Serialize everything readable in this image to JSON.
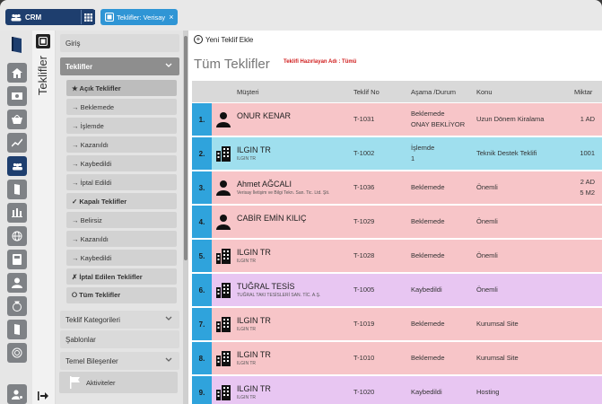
{
  "app": {
    "name": "CRM"
  },
  "tabs": {
    "active_label": "Teklifler: Verisay",
    "close": "×"
  },
  "side_title": "Teklifler",
  "menu": {
    "giris": "Giriş",
    "teklifler": "Teklifler",
    "acik": "★ Açık Teklifler",
    "acik_items": [
      "→ Beklemede",
      "→ İşlemde",
      "→ Kazanıldı",
      "→ Kaybedildi",
      "→ İptal Edildi"
    ],
    "kapali": "✓ Kapalı Teklifler",
    "kapali_items": [
      "→ Belirsiz",
      "→ Kazanıldı",
      "→ Kaybedildi"
    ],
    "iptal": "✗ İptal Edilen Teklifler",
    "tum": "⭘ Tüm Teklifler",
    "kategoriler": "Teklif Kategorileri",
    "sablonlar": "Şablonlar",
    "bilesenler": "Temel Bileşenler",
    "aktiviteler": "Aktiviteler"
  },
  "toolbar": {
    "new_label": "Yeni Teklif Ekle"
  },
  "page": {
    "title": "Tüm Teklifler",
    "filter": "Teklifi Hazırlayan Adı : Tümü"
  },
  "table": {
    "headers": {
      "customer": "Müşteri",
      "no": "Teklif No",
      "stage": "Aşama /Durum",
      "subject": "Konu",
      "amount": "Miktar"
    },
    "rows": [
      {
        "n": "1.",
        "icon": "person",
        "name": "ONUR KENAR",
        "sub": "",
        "no": "T-1031",
        "stage": "Beklemede",
        "stage2": "ONAY BEKLİYOR",
        "subject": "Uzun Dönem Kiralama",
        "amount": "1 AD",
        "amount2": "",
        "color": "pink"
      },
      {
        "n": "2.",
        "icon": "building",
        "name": "ILGIN TR",
        "sub": "ILGIN TR",
        "no": "T-1002",
        "stage": "İşlemde",
        "stage2": "1",
        "subject": "Teknik Destek Teklifi",
        "amount": "1001",
        "amount2": "",
        "color": "cyan"
      },
      {
        "n": "3.",
        "icon": "person",
        "name": "Ahmet AĞCALI",
        "sub": "Verisay İletişim ve Bilgi Tekn. San. Tic. Ltd. Şti.",
        "no": "T-1036",
        "stage": "Beklemede",
        "stage2": "",
        "subject": "Önemli",
        "amount": "2 AD",
        "amount2": "5 M2",
        "color": "pink"
      },
      {
        "n": "4.",
        "icon": "person",
        "name": "CABİR EMİN KILIÇ",
        "sub": "",
        "no": "T-1029",
        "stage": "Beklemede",
        "stage2": "",
        "subject": "Önemli",
        "amount": "",
        "amount2": "",
        "color": "pink"
      },
      {
        "n": "5.",
        "icon": "building",
        "name": "ILGIN TR",
        "sub": "ILGIN TR",
        "no": "T-1028",
        "stage": "Beklemede",
        "stage2": "",
        "subject": "Önemli",
        "amount": "",
        "amount2": "",
        "color": "pink"
      },
      {
        "n": "6.",
        "icon": "building",
        "name": "TUĞRAL TESİS",
        "sub": "TUĞRAL TAKI TESİSLERİ SAN. TİC. A.Ş.",
        "no": "T-1005",
        "stage": "Kaybedildi",
        "stage2": "",
        "subject": "Önemli",
        "amount": "",
        "amount2": "",
        "color": "lilac"
      },
      {
        "n": "7.",
        "icon": "building",
        "name": "ILGIN TR",
        "sub": "ILGIN TR",
        "no": "T-1019",
        "stage": "Beklemede",
        "stage2": "",
        "subject": "Kurumsal Site",
        "amount": "",
        "amount2": "",
        "color": "pink"
      },
      {
        "n": "8.",
        "icon": "building",
        "name": "ILGIN TR",
        "sub": "ILGIN TR",
        "no": "T-1010",
        "stage": "Beklemede",
        "stage2": "",
        "subject": "Kurumsal Site",
        "amount": "",
        "amount2": "",
        "color": "pink"
      },
      {
        "n": "9.",
        "icon": "building",
        "name": "ILGIN TR",
        "sub": "ILGIN TR",
        "no": "T-1020",
        "stage": "Kaybedildi",
        "stage2": "",
        "subject": "Hosting",
        "amount": "",
        "amount2": "",
        "color": "lilac"
      }
    ]
  }
}
